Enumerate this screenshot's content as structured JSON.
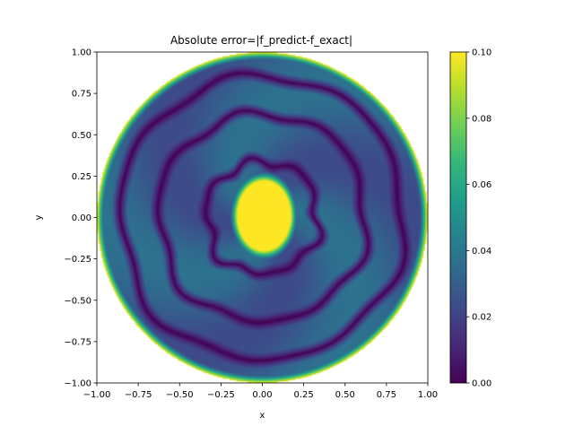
{
  "chart_data": {
    "type": "heatmap",
    "title": "Absolute error=|f_predict-f_exact|",
    "xlabel": "x",
    "ylabel": "y",
    "xlim": [
      -1.0,
      1.0
    ],
    "ylim": [
      -1.0,
      1.0
    ],
    "x_ticks": [
      -1.0,
      -0.75,
      -0.5,
      -0.25,
      0.0,
      0.25,
      0.5,
      0.75,
      1.0
    ],
    "y_ticks": [
      -1.0,
      -0.75,
      -0.5,
      -0.25,
      0.0,
      0.25,
      0.5,
      0.75,
      1.0
    ],
    "x_tick_labels": [
      "−1.00",
      "−0.75",
      "−0.50",
      "−0.25",
      "0.00",
      "0.25",
      "0.50",
      "0.75",
      "1.00"
    ],
    "y_tick_labels": [
      "−1.00",
      "−0.75",
      "−0.50",
      "−0.25",
      "0.00",
      "0.25",
      "0.50",
      "0.75",
      "1.00"
    ],
    "domain": "unit disk (x² + y² ≤ 1), white outside",
    "colormap": "viridis",
    "colormap_stops": [
      "#440154",
      "#482878",
      "#3e4989",
      "#31688e",
      "#26828e",
      "#1f9e89",
      "#35b779",
      "#6ece58",
      "#b5de2b",
      "#fde725"
    ],
    "colorbar": {
      "range": [
        0.0,
        0.1
      ],
      "ticks": [
        0.0,
        0.02,
        0.04,
        0.06,
        0.08,
        0.1
      ],
      "tick_labels": [
        "0.00",
        "0.02",
        "0.04",
        "0.06",
        "0.08",
        "0.10"
      ]
    },
    "features": {
      "center_blob": {
        "cx": 0.01,
        "cy": 0.01,
        "rx": 0.16,
        "ry": 0.21,
        "value": 0.1
      },
      "zero_contour_rings": [
        0.34,
        0.63,
        0.86
      ],
      "edge_error": {
        "value": 0.1,
        "at_r": 1.0
      },
      "background_value": 0.03
    }
  }
}
